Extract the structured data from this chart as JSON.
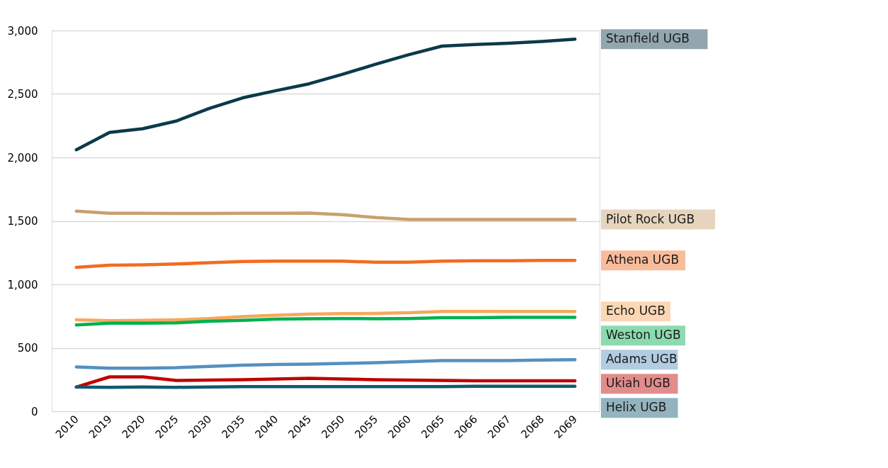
{
  "chart_data": {
    "type": "line",
    "categories": [
      "2010",
      "2019",
      "2020",
      "2025",
      "2030",
      "2035",
      "2040",
      "2045",
      "2050",
      "2055",
      "2060",
      "2065",
      "2066",
      "2067",
      "2068",
      "2069"
    ],
    "series": [
      {
        "name": "Stanfield UGB",
        "color": "#0b3a4a",
        "values": [
          2060,
          2197,
          2226,
          2286,
          2386,
          2469,
          2526,
          2580,
          2654,
          2734,
          2809,
          2877,
          2889,
          2900,
          2914,
          2931
        ]
      },
      {
        "name": "Pilot Rock UGB",
        "color": "#c9a06f",
        "values": [
          1577,
          1560,
          1560,
          1558,
          1558,
          1560,
          1560,
          1562,
          1549,
          1526,
          1511,
          1511,
          1511,
          1511,
          1511,
          1511
        ]
      },
      {
        "name": "Athena UGB",
        "color": "#f26b21",
        "values": [
          1134,
          1151,
          1154,
          1160,
          1171,
          1180,
          1183,
          1183,
          1183,
          1174,
          1174,
          1183,
          1186,
          1186,
          1189,
          1189
        ]
      },
      {
        "name": "Echo UGB",
        "color": "#f7a85c",
        "values": [
          720,
          714,
          717,
          720,
          731,
          746,
          757,
          766,
          769,
          771,
          777,
          786,
          786,
          786,
          786,
          786
        ]
      },
      {
        "name": "Weston UGB",
        "color": "#00b050",
        "values": [
          680,
          694,
          694,
          697,
          709,
          717,
          726,
          729,
          731,
          729,
          731,
          737,
          737,
          740,
          740,
          740
        ]
      },
      {
        "name": "Adams UGB",
        "color": "#5590bf",
        "values": [
          349,
          340,
          340,
          343,
          354,
          363,
          369,
          371,
          377,
          383,
          391,
          400,
          400,
          400,
          403,
          406
        ]
      },
      {
        "name": "Ukiah UGB",
        "color": "#c00000",
        "values": [
          191,
          271,
          271,
          243,
          246,
          249,
          254,
          260,
          254,
          249,
          246,
          243,
          240,
          240,
          240,
          240
        ]
      },
      {
        "name": "Helix UGB",
        "color": "#115a72",
        "values": [
          191,
          189,
          191,
          189,
          191,
          194,
          194,
          194,
          194,
          194,
          194,
          194,
          197,
          197,
          197,
          197
        ]
      }
    ],
    "ylim": [
      0,
      3000
    ],
    "yticks": [
      {
        "value": 0,
        "label": "0"
      },
      {
        "value": 500,
        "label": "500"
      },
      {
        "value": 1000,
        "label": "1,000"
      },
      {
        "value": 1500,
        "label": "1,500"
      },
      {
        "value": 2000,
        "label": "2,000"
      },
      {
        "value": 2500,
        "label": "2,500"
      },
      {
        "value": 3000,
        "label": "3,000"
      }
    ],
    "grid": "y"
  }
}
